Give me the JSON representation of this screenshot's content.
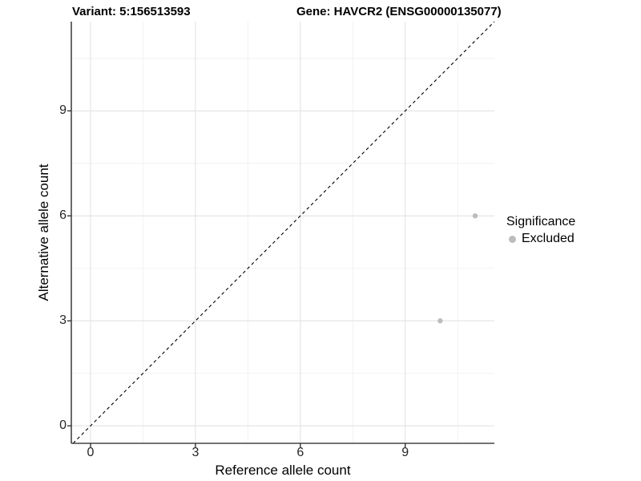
{
  "header": {
    "variant_title": "Variant: 5:156513593",
    "gene_title": "Gene: HAVCR2 (ENSG00000135077)"
  },
  "chart_data": {
    "type": "scatter",
    "title": "Variant: 5:156513593   Gene: HAVCR2 (ENSG00000135077)",
    "xlabel": "Reference allele count",
    "ylabel": "Alternative allele count",
    "xlim": [
      -0.55,
      11.55
    ],
    "ylim": [
      -0.5,
      11.55
    ],
    "x_ticks": [
      0,
      3,
      6,
      9
    ],
    "y_ticks": [
      0,
      3,
      6,
      9
    ],
    "minor_ticks": [
      1.5,
      4.5,
      7.5,
      10.5
    ],
    "grid": true,
    "series": [
      {
        "name": "Excluded",
        "color": "#bcbcbc",
        "points": [
          {
            "x": 10,
            "y": 3
          },
          {
            "x": 11,
            "y": 6
          }
        ]
      }
    ],
    "reference_line": {
      "type": "identity",
      "slope": 1,
      "intercept": 0,
      "style": "dashed",
      "color": "#000000"
    },
    "legend": {
      "title": "Significance",
      "position": "right",
      "entries": [
        {
          "label": "Excluded",
          "color": "#bcbcbc"
        }
      ]
    }
  },
  "colors": {
    "background": "#ffffff",
    "grid_major": "#e3e3e3",
    "grid_minor": "#efefef",
    "axis": "#454545",
    "tick": "#333333",
    "point": "#bcbcbc",
    "text": "#000000"
  }
}
